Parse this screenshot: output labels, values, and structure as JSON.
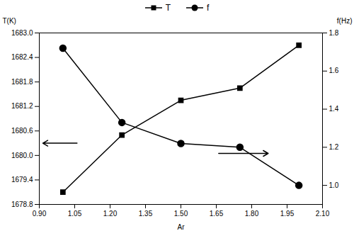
{
  "chart_data": {
    "type": "line",
    "x": [
      1.0,
      1.25,
      1.5,
      1.75,
      2.0
    ],
    "xlabel": "Ar",
    "ylabel": "T(K)",
    "y2label": "f(Hz)",
    "series": [
      {
        "name": "T",
        "color": "black",
        "marker": "square",
        "values": [
          1679.1,
          1680.5,
          1681.35,
          1681.65,
          1682.7
        ]
      },
      {
        "name": "f",
        "color": "black",
        "marker": "circle",
        "axis": "y2",
        "values": [
          1.72,
          1.33,
          1.22,
          1.2,
          1.0
        ]
      }
    ],
    "xlim": [
      0.9,
      2.1
    ],
    "ylim": [
      1678.8,
      1683.0
    ],
    "y2lim": [
      0.9,
      1.8
    ],
    "xticks": [
      {
        "value": 0.9,
        "label": "0.90"
      },
      1.05,
      {
        "value": 1.2,
        "label": "1.20"
      },
      1.35,
      {
        "value": 1.5,
        "label": "1.50"
      },
      1.65,
      {
        "value": 1.8,
        "label": "1.80"
      },
      1.95,
      {
        "value": 2.1,
        "label": "2.10"
      }
    ],
    "yticks": [
      1678.8,
      1679.4,
      {
        "value": 1680.0,
        "label": "1680.0"
      },
      1680.6,
      1681.2,
      1681.8,
      1682.4,
      {
        "value": 1683.0,
        "label": "1683.0"
      }
    ],
    "y2ticks": [
      {
        "value": 1.0,
        "label": "1.0"
      },
      1.2,
      1.4,
      1.6,
      1.8
    ],
    "legend": "top",
    "annotations": [
      {
        "x1": 1.06,
        "y1": 1680.3,
        "x2": 0.915,
        "y2": 1680.3
      },
      {
        "x1": 1.66,
        "y1": 1680.05,
        "x2": 1.87,
        "y2": 1680.05
      }
    ]
  }
}
